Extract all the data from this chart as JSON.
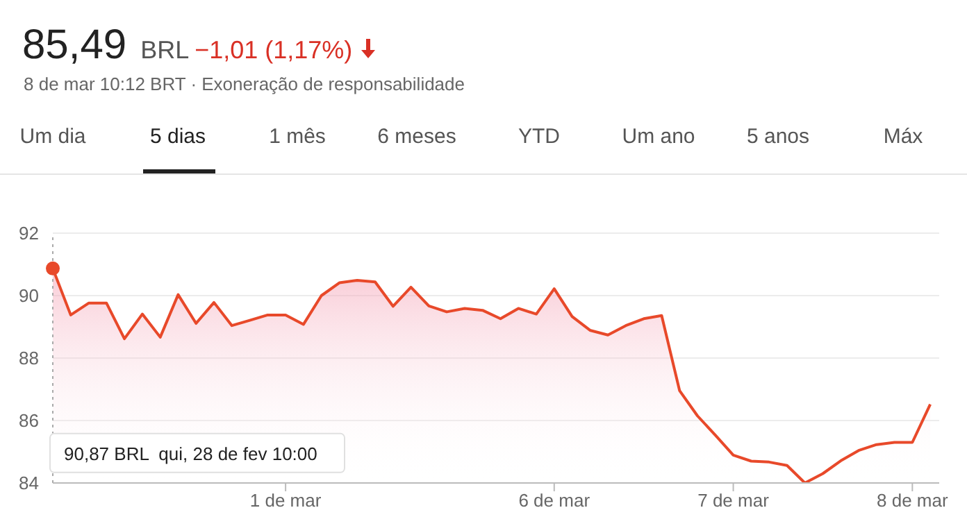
{
  "chart_data": {
    "type": "area",
    "title": "85,49",
    "subtitle": "8 de mar 10:12 BRT · Exoneração de responsabilidade",
    "annotations": [
      "BRL",
      "−1,01 (1,17%)",
      "Um dia",
      "5 dias",
      "1 mês",
      "6 meses",
      "YTD",
      "Um ano",
      "5 anos",
      "Máx",
      "90,87 BRL  qui, 28 de fev 10:00"
    ],
    "categories": [
      null,
      null,
      null,
      null,
      null,
      null,
      null,
      null,
      null,
      null,
      null,
      null,
      null,
      "1 de mar",
      null,
      null,
      null,
      null,
      null,
      null,
      null,
      null,
      null,
      null,
      null,
      null,
      null,
      null,
      "6 de mar",
      null,
      null,
      null,
      null,
      null,
      null,
      null,
      null,
      null,
      "7 de mar",
      null,
      null,
      null,
      null,
      null,
      null,
      null,
      null,
      null,
      "8 de mar",
      null
    ],
    "series": [
      {
        "color": "#e8492a",
        "values": [
          90.87,
          89.38,
          89.76,
          89.76,
          88.62,
          89.41,
          88.67,
          90.03,
          89.11,
          89.78,
          89.04,
          89.21,
          89.38,
          89.38,
          89.08,
          90.0,
          90.41,
          90.49,
          90.44,
          89.66,
          90.27,
          89.67,
          89.48,
          89.59,
          89.53,
          89.26,
          89.59,
          89.41,
          90.22,
          89.33,
          88.89,
          88.74,
          89.04,
          89.26,
          89.36,
          86.96,
          86.15,
          85.53,
          84.89,
          84.7,
          84.67,
          84.56,
          84.0,
          84.3,
          84.71,
          85.04,
          85.23,
          85.3,
          85.3,
          86.52
        ]
      }
    ],
    "ylim": [
      84,
      92
    ],
    "yticks": [
      84,
      86,
      88,
      90,
      92
    ],
    "grid": "y",
    "legend": false,
    "marker": "none",
    "line_style": "solid"
  }
}
